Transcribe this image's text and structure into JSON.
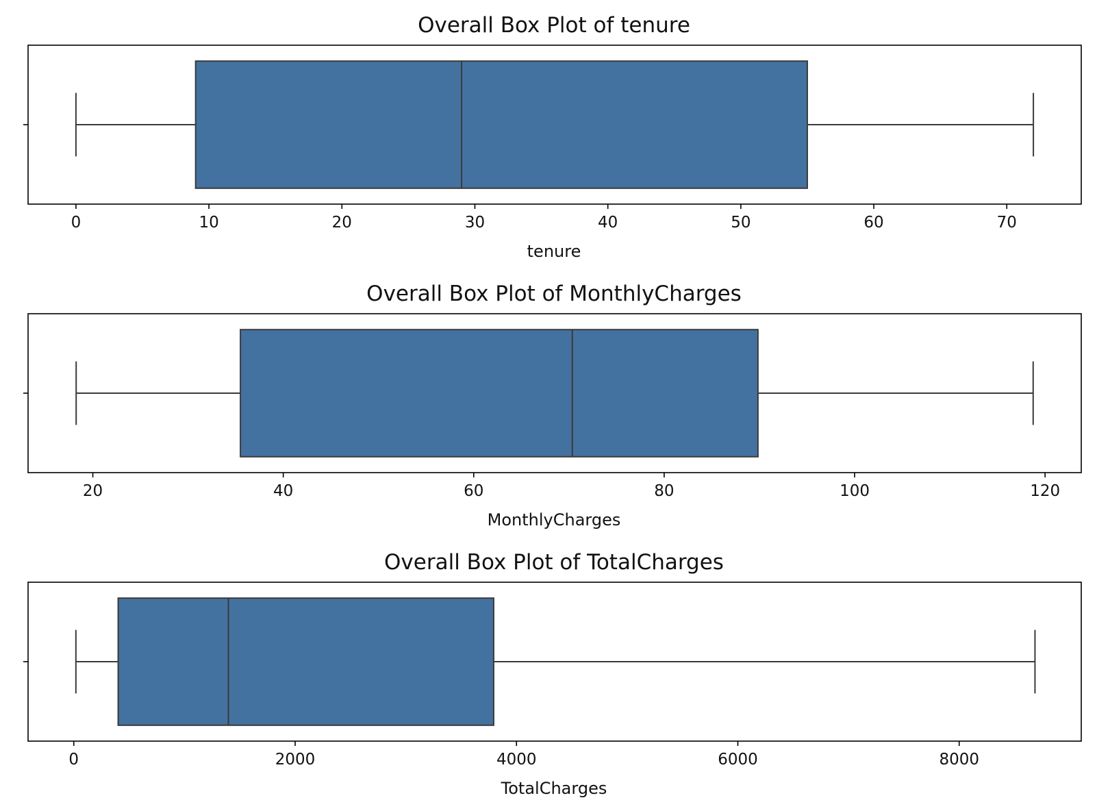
{
  "chart_data": [
    {
      "type": "box",
      "title": "Overall Box Plot of tenure",
      "xlabel": "tenure",
      "ylabel": "",
      "xlim": [
        -3.6,
        75.6
      ],
      "ticks": [
        0,
        10,
        20,
        30,
        40,
        50,
        60,
        70
      ],
      "tick_labels": [
        "0",
        "10",
        "20",
        "30",
        "40",
        "50",
        "60",
        "70"
      ],
      "box": {
        "whisker_low": 0,
        "q1": 9,
        "median": 29,
        "q3": 55,
        "whisker_high": 72
      },
      "color": "#4472a0",
      "grid": false
    },
    {
      "type": "box",
      "title": "Overall Box Plot of MonthlyCharges",
      "xlabel": "MonthlyCharges",
      "ylabel": "",
      "xlim": [
        13.2,
        123.8
      ],
      "ticks": [
        20,
        40,
        60,
        80,
        100,
        120
      ],
      "tick_labels": [
        "20",
        "40",
        "60",
        "80",
        "100",
        "120"
      ],
      "box": {
        "whisker_low": 18.25,
        "q1": 35.5,
        "median": 70.35,
        "q3": 89.85,
        "whisker_high": 118.75
      },
      "color": "#4472a0",
      "grid": false
    },
    {
      "type": "box",
      "title": "Overall Box Plot of TotalCharges",
      "xlabel": "TotalCharges",
      "ylabel": "",
      "xlim": [
        -413,
        9103
      ],
      "ticks": [
        0,
        2000,
        4000,
        6000,
        8000
      ],
      "tick_labels": [
        "0",
        "2000",
        "4000",
        "6000",
        "8000"
      ],
      "box": {
        "whisker_low": 19,
        "q1": 401,
        "median": 1397,
        "q3": 3794,
        "whisker_high": 8685
      },
      "color": "#4472a0",
      "grid": false
    }
  ]
}
